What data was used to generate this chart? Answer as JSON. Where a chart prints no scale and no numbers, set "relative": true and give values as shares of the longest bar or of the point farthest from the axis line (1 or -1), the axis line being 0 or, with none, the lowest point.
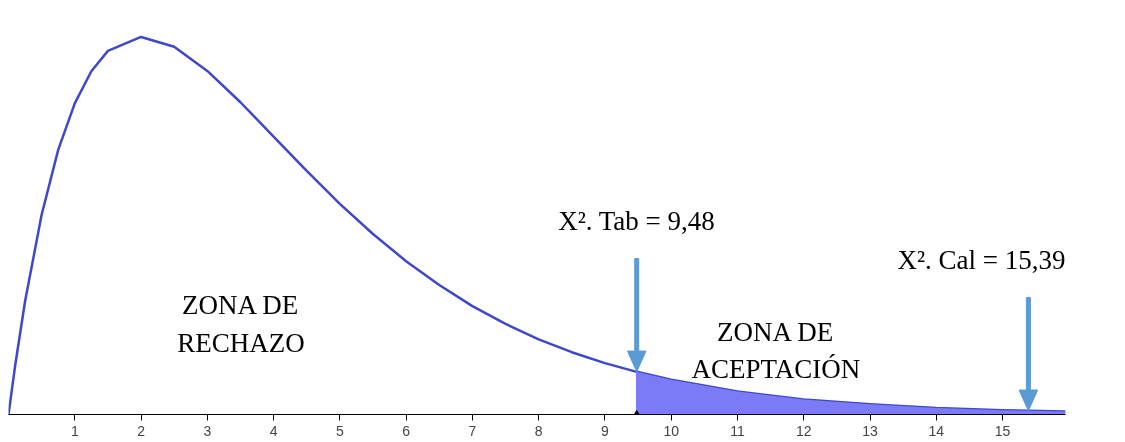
{
  "chart_data": {
    "type": "line",
    "relative": true,
    "xlim": [
      0,
      15.95
    ],
    "xticks": [
      1,
      2,
      3,
      4,
      5,
      6,
      7,
      8,
      9,
      10,
      11,
      12,
      13,
      14,
      15
    ],
    "grid": false,
    "marker": "none",
    "line_style": "solid",
    "series": [
      {
        "type": "line",
        "color": "#3f48cc",
        "x": [
          0,
          0.1,
          0.25,
          0.5,
          0.75,
          1,
          1.25,
          1.5,
          2,
          2.5,
          3,
          3.5,
          4,
          4.5,
          5,
          5.5,
          6,
          6.5,
          7,
          7.5,
          8,
          8.5,
          9,
          9.48,
          10,
          11,
          12,
          13,
          14,
          15,
          15.95
        ],
        "values": [
          0,
          0.129,
          0.3,
          0.529,
          0.701,
          0.824,
          0.909,
          0.963,
          1,
          0.974,
          0.91,
          0.827,
          0.736,
          0.645,
          0.558,
          0.478,
          0.406,
          0.343,
          0.287,
          0.24,
          0.199,
          0.165,
          0.136,
          0.113,
          0.092,
          0.061,
          0.04,
          0.027,
          0.017,
          0.011,
          0.008
        ]
      },
      {
        "type": "area",
        "color": "#7b7bf7",
        "x": [
          9.48,
          10,
          11,
          12,
          13,
          14,
          15,
          15.95
        ],
        "values": [
          0.113,
          0.092,
          0.061,
          0.04,
          0.027,
          0.017,
          0.011,
          0.008
        ]
      }
    ],
    "ref_lines": [
      {
        "axis": "x",
        "value": 9.48,
        "label": "X². Tab = 9,48",
        "color": "#5b9bd5"
      },
      {
        "axis": "x",
        "value": 15.39,
        "label": "X². Cal = 15,39",
        "color": "#5b9bd5"
      }
    ],
    "annotations": [
      "ZONA DE\nRECHAZO",
      "ZONA DE\nACEPTACIÓN"
    ]
  }
}
